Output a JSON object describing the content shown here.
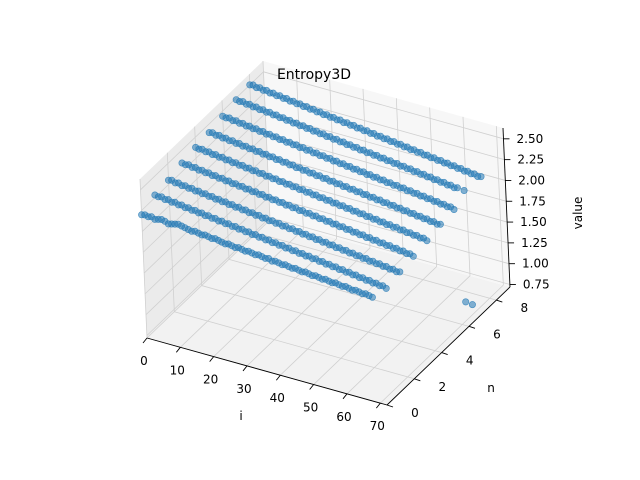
{
  "chart_data": {
    "type": "scatter",
    "projection": "3d",
    "title": "Entropy3D",
    "xlabel": "i",
    "ylabel": "n",
    "zlabel": "value",
    "xlim": [
      0,
      72
    ],
    "ylim": [
      0,
      9
    ],
    "zlim": [
      0.72,
      2.63
    ],
    "x_ticks": [
      0,
      10,
      20,
      30,
      40,
      50,
      60,
      70
    ],
    "y_ticks": [
      0,
      2,
      4,
      6,
      8
    ],
    "z_ticks": [
      0.75,
      1.0,
      1.25,
      1.5,
      1.75,
      2.0,
      2.25,
      2.5
    ],
    "z_tick_labels": [
      "0.75",
      "1.00",
      "1.25",
      "1.50",
      "1.75",
      "2.00",
      "2.25",
      "2.50"
    ],
    "grid": true,
    "marker_color": "#1f77b4",
    "series": [
      {
        "n": 0,
        "values": [
          2.2,
          2.21,
          2.2,
          2.21,
          2.19,
          2.2,
          2.21,
          2.2,
          2.18,
          2.19,
          2.2,
          2.21,
          2.2,
          2.19,
          2.18,
          2.17,
          2.18,
          2.17,
          2.16,
          2.17,
          2.16,
          2.15,
          2.16,
          2.15,
          2.14,
          2.13,
          2.14,
          2.13,
          2.12,
          2.13,
          2.12,
          2.11,
          2.12,
          2.11,
          2.1,
          2.11,
          2.1,
          2.09,
          2.1,
          2.08,
          2.09,
          2.08,
          2.07,
          2.08,
          2.07,
          2.06,
          2.07,
          2.06,
          2.05,
          2.06,
          2.05,
          2.04,
          2.05,
          2.04,
          2.03,
          2.04,
          2.03,
          2.02,
          2.03,
          2.02,
          2.01,
          2.02,
          2.01,
          2.0,
          2.01,
          2.0,
          1.99,
          2.0,
          1.99,
          1.98
        ]
      },
      {
        "n": 1,
        "values": [
          2.28,
          2.27,
          2.28,
          2.26,
          2.27,
          2.25,
          2.26,
          2.24,
          2.25,
          2.23,
          2.24,
          2.22,
          2.23,
          2.21,
          2.22,
          2.2,
          2.21,
          2.19,
          2.2,
          2.18,
          2.19,
          2.17,
          2.18,
          2.16,
          2.17,
          2.15,
          2.16,
          2.14,
          2.15,
          2.13,
          2.14,
          2.12,
          2.13,
          2.11,
          2.12,
          2.1,
          2.11,
          2.09,
          2.1,
          2.08,
          2.09,
          2.07,
          2.08,
          2.06,
          2.07,
          2.05,
          2.06,
          2.04,
          2.05,
          2.03,
          2.04,
          2.02,
          2.03,
          2.01,
          2.02,
          2.0,
          2.01,
          1.99,
          2.0,
          1.98,
          1.99,
          1.97,
          1.98,
          1.96,
          1.97,
          1.95,
          1.96,
          1.94,
          1.95,
          1.93
        ]
      },
      {
        "n": 2,
        "values": [
          2.3,
          2.31,
          2.29,
          2.3,
          2.28,
          2.29,
          2.27,
          2.28,
          2.26,
          2.27,
          2.25,
          2.26,
          2.24,
          2.25,
          2.23,
          2.24,
          2.22,
          2.23,
          2.21,
          2.22,
          2.2,
          2.21,
          2.19,
          2.2,
          2.18,
          2.19,
          2.17,
          2.18,
          2.16,
          2.17,
          2.15,
          2.16,
          2.14,
          2.15,
          2.13,
          2.14,
          2.12,
          2.13,
          2.11,
          2.12,
          2.1,
          2.11,
          2.09,
          2.1,
          2.08,
          2.09,
          2.07,
          2.08,
          2.06,
          2.07,
          2.05,
          2.06,
          2.04,
          2.05,
          2.03,
          2.04,
          2.02,
          2.03,
          2.01,
          2.02,
          2.0,
          2.01,
          1.99,
          2.0,
          1.98,
          1.99,
          1.97,
          1.98,
          1.96,
          1.97
        ]
      },
      {
        "n": 3,
        "values": [
          2.35,
          2.34,
          2.35,
          2.33,
          2.34,
          2.32,
          2.33,
          2.31,
          2.32,
          2.3,
          2.31,
          2.29,
          2.3,
          2.28,
          2.29,
          2.27,
          2.28,
          2.26,
          2.27,
          2.25,
          2.26,
          2.24,
          2.25,
          2.23,
          2.24,
          2.22,
          2.23,
          2.21,
          2.22,
          2.2,
          2.21,
          2.19,
          2.2,
          2.18,
          2.19,
          2.17,
          2.18,
          2.16,
          2.17,
          2.15,
          2.16,
          2.14,
          2.15,
          2.13,
          2.14,
          2.12,
          2.13,
          2.11,
          2.12,
          2.1,
          2.11,
          2.09,
          2.1,
          2.08,
          2.09,
          2.07,
          2.08,
          2.06,
          2.07,
          2.05,
          2.06,
          2.04,
          2.05,
          2.03,
          2.04,
          2.02,
          2.03,
          2.01,
          2.02,
          2.0
        ]
      },
      {
        "n": 4,
        "values": [
          2.38,
          2.37,
          2.38,
          2.36,
          2.37,
          2.35,
          2.36,
          2.34,
          2.35,
          2.33,
          2.34,
          2.32,
          2.33,
          2.31,
          2.32,
          2.3,
          2.31,
          2.29,
          2.3,
          2.28,
          2.29,
          2.27,
          2.28,
          2.26,
          2.27,
          2.25,
          2.26,
          2.24,
          2.25,
          2.23,
          2.24,
          2.22,
          2.23,
          2.21,
          2.22,
          2.2,
          2.21,
          2.19,
          2.2,
          2.18,
          2.19,
          2.17,
          2.18,
          2.16,
          2.17,
          2.15,
          2.16,
          2.14,
          2.15,
          2.13,
          2.14,
          2.12,
          2.13,
          2.11,
          2.12,
          2.1,
          2.11,
          2.09,
          2.1,
          2.08,
          2.09,
          2.07,
          2.08,
          2.06,
          2.07,
          2.05,
          2.06,
          2.04,
          2.05,
          2.03
        ]
      },
      {
        "n": 5,
        "values": [
          2.4,
          2.41,
          2.39,
          2.4,
          2.38,
          2.39,
          2.37,
          2.38,
          2.36,
          2.37,
          2.35,
          2.36,
          2.34,
          2.35,
          2.33,
          2.34,
          2.32,
          2.33,
          2.31,
          2.32,
          2.3,
          2.31,
          2.29,
          2.3,
          2.28,
          2.29,
          2.27,
          2.28,
          2.26,
          2.27,
          2.25,
          2.26,
          2.24,
          2.25,
          2.23,
          2.24,
          2.22,
          2.23,
          2.21,
          2.22,
          2.2,
          2.21,
          2.19,
          2.2,
          2.18,
          2.19,
          2.17,
          2.18,
          2.16,
          2.17,
          2.15,
          2.16,
          2.14,
          2.15,
          2.13,
          2.14,
          2.12,
          2.13,
          2.11,
          2.12,
          2.1,
          2.11,
          2.09,
          2.1,
          2.08,
          2.09,
          2.07,
          2.08,
          2.06,
          2.07
        ]
      },
      {
        "n": 6,
        "values": [
          2.44,
          2.43,
          2.44,
          2.42,
          2.43,
          2.41,
          2.42,
          2.4,
          2.41,
          2.39,
          2.4,
          2.38,
          2.39,
          2.37,
          2.38,
          2.36,
          2.37,
          2.35,
          2.36,
          2.34,
          2.35,
          2.33,
          2.34,
          2.32,
          2.33,
          2.31,
          2.32,
          2.3,
          2.31,
          2.29,
          2.3,
          2.28,
          2.29,
          2.27,
          2.28,
          2.26,
          2.27,
          2.25,
          2.26,
          2.24,
          2.25,
          2.23,
          2.24,
          2.22,
          2.23,
          2.21,
          2.22,
          2.2,
          2.21,
          2.19,
          2.2,
          2.18,
          2.19,
          2.17,
          2.18,
          2.16,
          2.17,
          2.15,
          2.16,
          2.14,
          2.15,
          2.13,
          2.14,
          2.12,
          2.13,
          2.11,
          2.12,
          2.1,
          2.11,
          2.09
        ]
      },
      {
        "n": 7,
        "values": [
          2.48,
          2.47,
          2.48,
          2.46,
          2.47,
          2.45,
          2.46,
          2.44,
          2.45,
          2.43,
          2.44,
          2.42,
          2.43,
          2.41,
          2.42,
          2.4,
          2.41,
          2.39,
          2.4,
          2.38,
          2.39,
          2.37,
          2.38,
          2.36,
          2.37,
          2.35,
          2.36,
          2.34,
          2.35,
          2.33,
          2.34,
          2.32,
          2.33,
          2.31,
          2.32,
          2.3,
          2.31,
          2.29,
          2.3,
          2.28,
          2.29,
          2.27,
          2.28,
          2.26,
          2.27,
          2.25,
          2.26,
          2.24,
          2.25,
          2.23,
          2.24,
          2.22,
          2.23,
          2.21,
          2.22,
          2.2,
          2.21,
          2.19,
          2.2,
          2.18,
          2.19,
          2.17,
          2.18,
          2.16,
          2.17,
          2.15,
          2.16,
          0.8,
          2.15,
          0.79
        ]
      },
      {
        "n": 8,
        "values": [
          2.5,
          2.51,
          2.49,
          2.5,
          2.48,
          2.49,
          2.47,
          2.48,
          2.46,
          2.47,
          2.45,
          2.46,
          2.44,
          2.45,
          2.43,
          2.44,
          2.42,
          2.43,
          2.41,
          2.42,
          2.4,
          2.41,
          2.39,
          2.4,
          2.38,
          2.39,
          2.37,
          2.38,
          2.36,
          2.37,
          2.35,
          2.36,
          2.34,
          2.35,
          2.33,
          2.34,
          2.32,
          2.33,
          2.31,
          2.32,
          2.3,
          2.31,
          2.29,
          2.3,
          2.28,
          2.29,
          2.27,
          2.28,
          2.26,
          2.27,
          2.25,
          2.26,
          2.24,
          2.25,
          2.23,
          2.24,
          2.22,
          2.23,
          2.21,
          2.22,
          2.2,
          2.21,
          2.19,
          2.2,
          2.18,
          2.19,
          2.17,
          2.18,
          2.16,
          2.17
        ]
      }
    ]
  }
}
